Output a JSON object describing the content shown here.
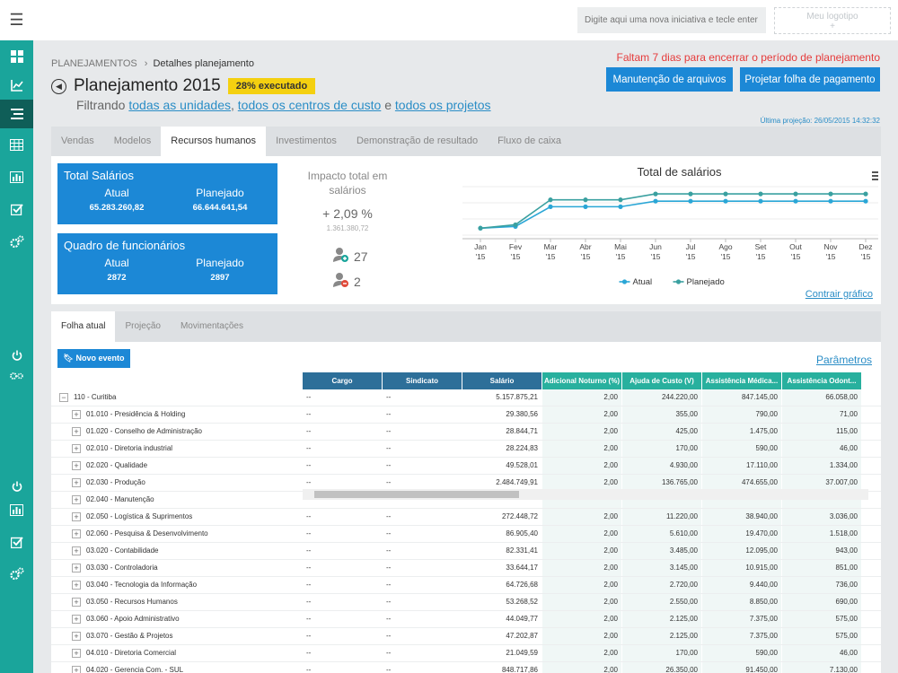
{
  "topbar": {
    "initiative_placeholder": "Digite aqui uma nova iniciativa e tecle enter",
    "logo_text": "Meu logotipo",
    "logo_plus": "+"
  },
  "breadcrumb": {
    "root": "PLANEJAMENTOS",
    "separator": "›",
    "current": "Detalhes planejamento"
  },
  "header": {
    "title": "Planejamento 2015",
    "badge": "28% executado",
    "filter_prefix": "Filtrando",
    "filter_units": "todas as unidades",
    "filter_comma": ",",
    "filter_cost_centers": "todos os centros de custo",
    "filter_and": "e",
    "filter_projects": "todos os projetos",
    "deadline": "Faltam 7 dias para encerrar o período de planejamento",
    "btn_files": "Manutenção de arquivos",
    "btn_payroll": "Projetar folha de pagamento",
    "last_projection": "Última projeção: 26/05/2015 14:32:32"
  },
  "tabs": [
    "Vendas",
    "Modelos",
    "Recursos humanos",
    "Investimentos",
    "Demonstração de resultado",
    "Fluxo de caixa"
  ],
  "active_tab": 2,
  "salaries": {
    "title": "Total Salários",
    "actual_label": "Atual",
    "planned_label": "Planejado",
    "actual": "65.283.260,82",
    "planned": "66.644.641,54"
  },
  "headcount": {
    "title": "Quadro de funcionários",
    "actual_label": "Atual",
    "planned_label": "Planejado",
    "actual": "2872",
    "planned": "2897"
  },
  "impact": {
    "title": "Impacto total em salários",
    "pct": "+ 2,09 %",
    "abs": "1.361.380,72",
    "hires": "27",
    "fires": "2"
  },
  "chart_data": {
    "type": "line",
    "title": "Total de salários",
    "categories": [
      "Jan '15",
      "Fev '15",
      "Mar '15",
      "Abr '15",
      "Mai '15",
      "Jun '15",
      "Jul '15",
      "Ago '15",
      "Set '15",
      "Out '15",
      "Nov '15",
      "Dez '15"
    ],
    "series": [
      {
        "name": "Atual",
        "color": "#2aa6d6",
        "values": [
          5.0,
          5.05,
          5.62,
          5.62,
          5.62,
          5.78,
          5.78,
          5.78,
          5.78,
          5.78,
          5.78,
          5.78
        ]
      },
      {
        "name": "Planejado",
        "color": "#3aa0a0",
        "values": [
          5.0,
          5.1,
          5.82,
          5.82,
          5.82,
          5.99,
          5.99,
          5.99,
          5.99,
          5.99,
          5.99,
          5.99
        ]
      }
    ],
    "ylim": [
      4.8,
      6.2
    ],
    "grid": true,
    "legend": "bottom",
    "menu_icon": "hamburger-icon"
  },
  "collapse_chart": "Contrair gráfico",
  "sub_tabs": [
    "Folha atual",
    "Projeção",
    "Movimentações"
  ],
  "active_sub_tab": 0,
  "new_event": "Novo evento",
  "params": "Parâmetros",
  "grid": {
    "columns": [
      "Cargo",
      "Sindicato",
      "Salário",
      "Adicional Noturno (%)",
      "Ajuda de Custo (V)",
      "Assistência Médica...",
      "Assistência Odont..."
    ],
    "rows": [
      {
        "name": "110 - Curitiba",
        "level": 0,
        "cargo": "--",
        "sindicato": "--",
        "salario": "5.157.875,21",
        "adic": "2,00",
        "ajuda": "244.220,00",
        "med": "847.145,00",
        "odont": "66.058,00"
      },
      {
        "name": "01.010 - Presidência & Holding",
        "level": 1,
        "cargo": "--",
        "sindicato": "--",
        "salario": "29.380,56",
        "adic": "2,00",
        "ajuda": "355,00",
        "med": "790,00",
        "odont": "71,00"
      },
      {
        "name": "01.020 - Conselho de Administração",
        "level": 1,
        "cargo": "--",
        "sindicato": "--",
        "salario": "28.844,71",
        "adic": "2,00",
        "ajuda": "425,00",
        "med": "1.475,00",
        "odont": "115,00"
      },
      {
        "name": "02.010 - Diretoria industrial",
        "level": 1,
        "cargo": "--",
        "sindicato": "--",
        "salario": "28.224,83",
        "adic": "2,00",
        "ajuda": "170,00",
        "med": "590,00",
        "odont": "46,00"
      },
      {
        "name": "02.020 - Qualidade",
        "level": 1,
        "cargo": "--",
        "sindicato": "--",
        "salario": "49.528,01",
        "adic": "2,00",
        "ajuda": "4.930,00",
        "med": "17.110,00",
        "odont": "1.334,00"
      },
      {
        "name": "02.030 - Produção",
        "level": 1,
        "cargo": "--",
        "sindicato": "--",
        "salario": "2.484.749,91",
        "adic": "2,00",
        "ajuda": "136.765,00",
        "med": "474.655,00",
        "odont": "37.007,00"
      },
      {
        "name": "02.040 - Manutenção",
        "level": 1,
        "cargo": "",
        "sindicato": "",
        "salario": "",
        "adic": "",
        "ajuda": "",
        "med": "",
        "odont": ""
      },
      {
        "name": "02.050 - Logística & Suprimentos",
        "level": 1,
        "cargo": "--",
        "sindicato": "--",
        "salario": "272.448,72",
        "adic": "2,00",
        "ajuda": "11.220,00",
        "med": "38.940,00",
        "odont": "3.036,00"
      },
      {
        "name": "02.060 - Pesquisa & Desenvolvimento",
        "level": 1,
        "cargo": "--",
        "sindicato": "--",
        "salario": "86.905,40",
        "adic": "2,00",
        "ajuda": "5.610,00",
        "med": "19.470,00",
        "odont": "1.518,00"
      },
      {
        "name": "03.020 - Contabilidade",
        "level": 1,
        "cargo": "--",
        "sindicato": "--",
        "salario": "82.331,41",
        "adic": "2,00",
        "ajuda": "3.485,00",
        "med": "12.095,00",
        "odont": "943,00"
      },
      {
        "name": "03.030 - Controladoria",
        "level": 1,
        "cargo": "--",
        "sindicato": "--",
        "salario": "33.644,17",
        "adic": "2,00",
        "ajuda": "3.145,00",
        "med": "10.915,00",
        "odont": "851,00"
      },
      {
        "name": "03.040 - Tecnologia da Informação",
        "level": 1,
        "cargo": "--",
        "sindicato": "--",
        "salario": "64.726,68",
        "adic": "2,00",
        "ajuda": "2.720,00",
        "med": "9.440,00",
        "odont": "736,00"
      },
      {
        "name": "03.050 - Recursos Humanos",
        "level": 1,
        "cargo": "--",
        "sindicato": "--",
        "salario": "53.268,52",
        "adic": "2,00",
        "ajuda": "2.550,00",
        "med": "8.850,00",
        "odont": "690,00"
      },
      {
        "name": "03.060 - Apoio Administrativo",
        "level": 1,
        "cargo": "--",
        "sindicato": "--",
        "salario": "44.049,77",
        "adic": "2,00",
        "ajuda": "2.125,00",
        "med": "7.375,00",
        "odont": "575,00"
      },
      {
        "name": "03.070 - Gestão & Projetos",
        "level": 1,
        "cargo": "--",
        "sindicato": "--",
        "salario": "47.202,87",
        "adic": "2,00",
        "ajuda": "2.125,00",
        "med": "7.375,00",
        "odont": "575,00"
      },
      {
        "name": "04.010 - Diretoria Comercial",
        "level": 1,
        "cargo": "--",
        "sindicato": "--",
        "salario": "21.049,59",
        "adic": "2,00",
        "ajuda": "170,00",
        "med": "590,00",
        "odont": "46,00"
      },
      {
        "name": "04.020 - Gerencia Com. - SUL",
        "level": 1,
        "cargo": "--",
        "sindicato": "--",
        "salario": "848.717,86",
        "adic": "2,00",
        "ajuda": "26.350,00",
        "med": "91.450,00",
        "odont": "7.130,00"
      }
    ]
  }
}
